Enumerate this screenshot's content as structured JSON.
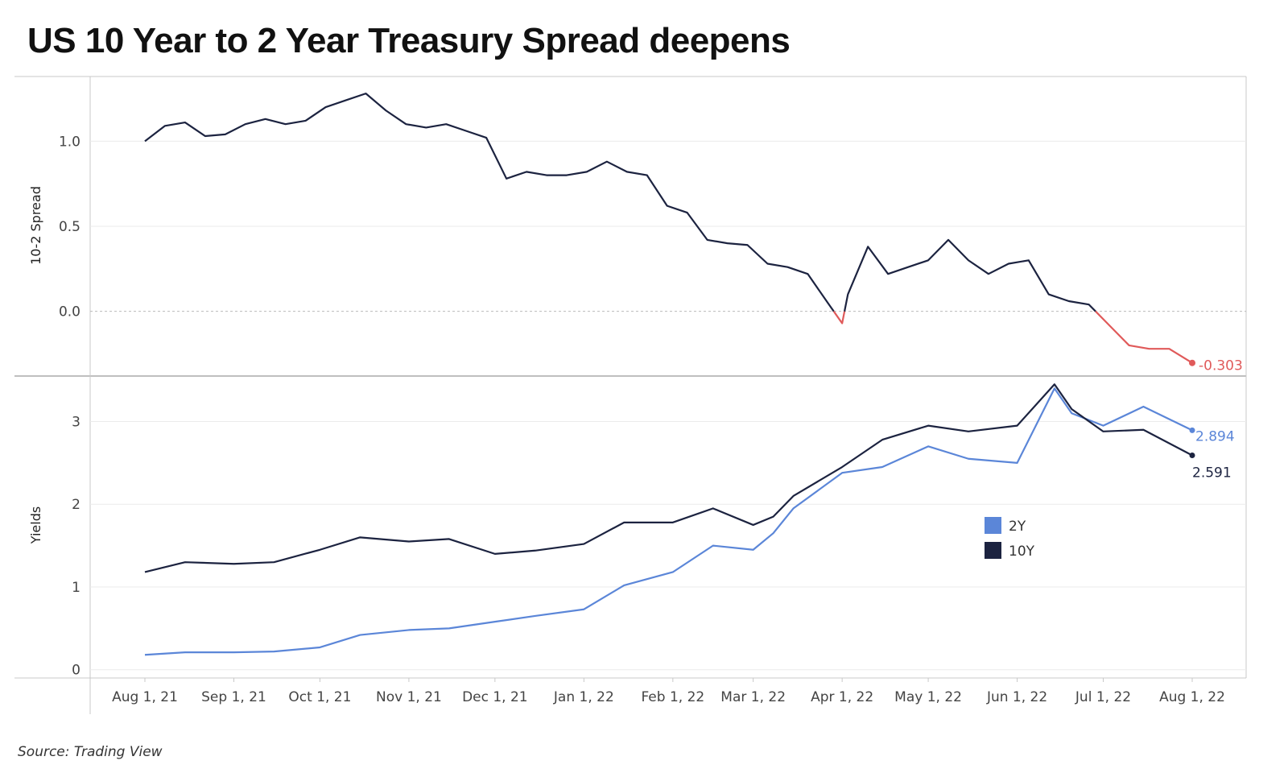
{
  "title": "US 10 Year to 2 Year Treasury Spread deepens",
  "source": "Source: Trading View",
  "colors": {
    "y2": "#5b86d8",
    "y10": "#1c2340",
    "negative": "#e05a5a",
    "grid": "#ebebeb",
    "axis": "#c8c8c8"
  },
  "chart_data": [
    {
      "type": "line",
      "ylabel": "10-2 Spread",
      "ylim": [
        -0.38,
        1.38
      ],
      "yticks": [
        "1.0",
        "0.5",
        "0.0"
      ],
      "ytick_values": [
        1.0,
        0.5,
        0.0
      ],
      "end_label": "-0.303",
      "x": [
        "2021-08-01",
        "2021-08-08",
        "2021-08-15",
        "2021-08-22",
        "2021-08-29",
        "2021-09-05",
        "2021-09-12",
        "2021-09-19",
        "2021-09-26",
        "2021-10-03",
        "2021-10-10",
        "2021-10-17",
        "2021-10-24",
        "2021-10-31",
        "2021-11-07",
        "2021-11-14",
        "2021-11-21",
        "2021-11-28",
        "2021-12-05",
        "2021-12-12",
        "2021-12-19",
        "2021-12-26",
        "2022-01-02",
        "2022-01-09",
        "2022-01-16",
        "2022-01-23",
        "2022-01-30",
        "2022-02-06",
        "2022-02-13",
        "2022-02-20",
        "2022-02-27",
        "2022-03-06",
        "2022-03-13",
        "2022-03-20",
        "2022-03-27",
        "2022-04-01",
        "2022-04-03",
        "2022-04-10",
        "2022-04-17",
        "2022-04-24",
        "2022-05-01",
        "2022-05-08",
        "2022-05-15",
        "2022-05-22",
        "2022-05-29",
        "2022-06-05",
        "2022-06-12",
        "2022-06-19",
        "2022-06-26",
        "2022-07-03",
        "2022-07-10",
        "2022-07-17",
        "2022-07-24",
        "2022-08-01"
      ],
      "series": [
        {
          "values": [
            1.0,
            1.09,
            1.11,
            1.03,
            1.04,
            1.1,
            1.13,
            1.1,
            1.12,
            1.2,
            1.24,
            1.28,
            1.18,
            1.1,
            1.08,
            1.1,
            1.06,
            1.02,
            0.78,
            0.82,
            0.8,
            0.8,
            0.82,
            0.88,
            0.82,
            0.8,
            0.62,
            0.58,
            0.42,
            0.4,
            0.39,
            0.28,
            0.26,
            0.22,
            0.05,
            -0.07,
            0.1,
            0.38,
            0.22,
            0.26,
            0.3,
            0.42,
            0.3,
            0.22,
            0.28,
            0.3,
            0.1,
            0.06,
            0.04,
            -0.08,
            -0.2,
            -0.22,
            -0.22,
            -0.303
          ]
        }
      ]
    },
    {
      "type": "line",
      "ylabel": "Yields",
      "ylim": [
        -0.1,
        3.55
      ],
      "yticks": [
        "3",
        "2",
        "1",
        "0"
      ],
      "ytick_values": [
        3,
        2,
        1,
        0
      ],
      "x": [
        "2021-08-01",
        "2021-08-15",
        "2021-09-01",
        "2021-09-15",
        "2021-10-01",
        "2021-10-15",
        "2021-11-01",
        "2021-11-15",
        "2021-12-01",
        "2021-12-15",
        "2022-01-01",
        "2022-01-15",
        "2022-02-01",
        "2022-02-15",
        "2022-03-01",
        "2022-03-08",
        "2022-03-15",
        "2022-04-01",
        "2022-04-15",
        "2022-05-01",
        "2022-05-15",
        "2022-06-01",
        "2022-06-14",
        "2022-06-20",
        "2022-07-01",
        "2022-07-15",
        "2022-08-01"
      ],
      "series": [
        {
          "name": "2Y",
          "values": [
            0.18,
            0.21,
            0.21,
            0.22,
            0.27,
            0.42,
            0.48,
            0.5,
            0.58,
            0.65,
            0.73,
            1.02,
            1.18,
            1.5,
            1.45,
            1.65,
            1.95,
            2.38,
            2.45,
            2.7,
            2.55,
            2.5,
            3.4,
            3.1,
            2.95,
            3.18,
            2.894
          ],
          "end_label": "2.894"
        },
        {
          "name": "10Y",
          "values": [
            1.18,
            1.3,
            1.28,
            1.3,
            1.45,
            1.6,
            1.55,
            1.58,
            1.4,
            1.44,
            1.52,
            1.78,
            1.78,
            1.95,
            1.75,
            1.85,
            2.1,
            2.45,
            2.78,
            2.95,
            2.88,
            2.95,
            3.45,
            3.15,
            2.88,
            2.9,
            2.591
          ],
          "end_label": "2.591"
        }
      ]
    }
  ],
  "x_axis": {
    "ticks": [
      "Aug 1, 21",
      "Sep 1, 21",
      "Oct 1, 21",
      "Nov 1, 21",
      "Dec 1, 21",
      "Jan 1, 22",
      "Feb 1, 22",
      "Mar 1, 22",
      "Apr 1, 22",
      "May 1, 22",
      "Jun 1, 22",
      "Jul 1, 22",
      "Aug 1, 22"
    ],
    "tick_dates": [
      "2021-08-01",
      "2021-09-01",
      "2021-10-01",
      "2021-11-01",
      "2021-12-01",
      "2022-01-01",
      "2022-02-01",
      "2022-03-01",
      "2022-04-01",
      "2022-05-01",
      "2022-06-01",
      "2022-07-01",
      "2022-08-01"
    ]
  }
}
